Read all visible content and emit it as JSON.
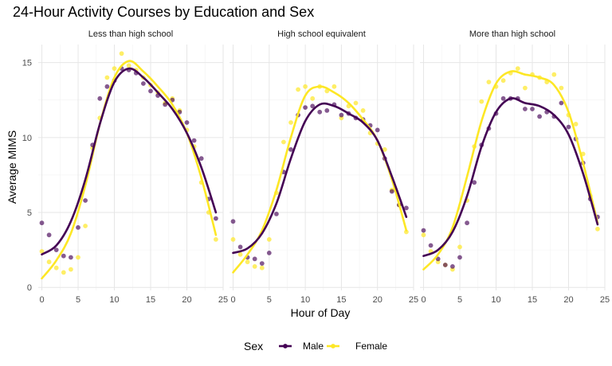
{
  "chart_data": {
    "type": "scatter",
    "title": "24-Hour Activity Courses by Education and Sex",
    "xlabel": "Hour of Day",
    "ylabel": "Average MIMS",
    "xlim": [
      -0.5,
      25
    ],
    "ylim": [
      -0.2,
      16.2
    ],
    "x_ticks": [
      0,
      5,
      10,
      15,
      20,
      25
    ],
    "y_ticks": [
      0,
      5,
      10,
      15
    ],
    "grid": true,
    "legend": {
      "title": "Sex",
      "position": "bottom"
    },
    "colors": {
      "Male": "#440154",
      "Female": "#FDE725"
    },
    "panels": [
      {
        "title": "Less than high school",
        "series": [
          {
            "name": "Male",
            "points": [
              [
                0,
                4.3
              ],
              [
                1,
                3.5
              ],
              [
                2,
                2.5
              ],
              [
                3,
                2.1
              ],
              [
                4,
                2.0
              ],
              [
                5,
                4.0
              ],
              [
                6,
                5.8
              ],
              [
                7,
                9.5
              ],
              [
                8,
                12.6
              ],
              [
                9,
                13.4
              ],
              [
                10,
                13.8
              ],
              [
                11,
                14.6
              ],
              [
                12,
                14.5
              ],
              [
                13,
                14.3
              ],
              [
                14,
                13.6
              ],
              [
                15,
                13.1
              ],
              [
                16,
                12.8
              ],
              [
                17,
                12.2
              ],
              [
                18,
                12.5
              ],
              [
                19,
                11.7
              ],
              [
                20,
                11.0
              ],
              [
                21,
                9.8
              ],
              [
                22,
                8.6
              ],
              [
                23,
                5.9
              ],
              [
                24,
                4.6
              ]
            ],
            "smooth": [
              [
                0,
                2.2
              ],
              [
                2,
                2.8
              ],
              [
                4,
                4.4
              ],
              [
                6,
                7.2
              ],
              [
                8,
                10.9
              ],
              [
                10,
                13.7
              ],
              [
                12,
                14.6
              ],
              [
                14,
                14.0
              ],
              [
                16,
                13.0
              ],
              [
                18,
                11.9
              ],
              [
                20,
                10.3
              ],
              [
                22,
                8.0
              ],
              [
                24,
                5.0
              ]
            ]
          },
          {
            "name": "Female",
            "points": [
              [
                0,
                2.4
              ],
              [
                1,
                1.7
              ],
              [
                2,
                1.3
              ],
              [
                3,
                1.0
              ],
              [
                4,
                1.2
              ],
              [
                5,
                2.0
              ],
              [
                6,
                4.1
              ],
              [
                7,
                9.3
              ],
              [
                8,
                11.3
              ],
              [
                9,
                14.0
              ],
              [
                10,
                14.6
              ],
              [
                11,
                15.6
              ],
              [
                12,
                14.8
              ],
              [
                13,
                14.5
              ],
              [
                14,
                14.0
              ],
              [
                15,
                13.5
              ],
              [
                16,
                13.0
              ],
              [
                17,
                12.3
              ],
              [
                18,
                12.6
              ],
              [
                19,
                11.8
              ],
              [
                20,
                10.5
              ],
              [
                21,
                9.4
              ],
              [
                22,
                7.0
              ],
              [
                23,
                5.0
              ],
              [
                24,
                3.2
              ]
            ],
            "smooth": [
              [
                0,
                0.6
              ],
              [
                2,
                1.8
              ],
              [
                4,
                3.6
              ],
              [
                6,
                6.8
              ],
              [
                8,
                10.9
              ],
              [
                10,
                14.0
              ],
              [
                12,
                15.1
              ],
              [
                14,
                14.4
              ],
              [
                16,
                13.4
              ],
              [
                18,
                12.2
              ],
              [
                20,
                10.3
              ],
              [
                22,
                7.3
              ],
              [
                24,
                3.5
              ]
            ]
          }
        ]
      },
      {
        "title": "High school equivalent",
        "series": [
          {
            "name": "Male",
            "points": [
              [
                0,
                4.4
              ],
              [
                1,
                2.7
              ],
              [
                2,
                2.0
              ],
              [
                3,
                1.9
              ],
              [
                4,
                1.6
              ],
              [
                5,
                2.3
              ],
              [
                6,
                4.9
              ],
              [
                7,
                7.7
              ],
              [
                8,
                9.2
              ],
              [
                9,
                11.5
              ],
              [
                10,
                12.0
              ],
              [
                11,
                12.1
              ],
              [
                12,
                11.7
              ],
              [
                13,
                11.8
              ],
              [
                14,
                12.2
              ],
              [
                15,
                11.5
              ],
              [
                16,
                11.6
              ],
              [
                17,
                11.3
              ],
              [
                18,
                11.2
              ],
              [
                19,
                10.8
              ],
              [
                20,
                10.5
              ],
              [
                21,
                8.6
              ],
              [
                22,
                6.4
              ],
              [
                23,
                5.5
              ],
              [
                24,
                5.3
              ]
            ],
            "smooth": [
              [
                0,
                2.3
              ],
              [
                2,
                2.6
              ],
              [
                4,
                3.6
              ],
              [
                6,
                5.6
              ],
              [
                8,
                8.6
              ],
              [
                10,
                11.1
              ],
              [
                12,
                12.2
              ],
              [
                14,
                12.1
              ],
              [
                16,
                11.6
              ],
              [
                18,
                11.0
              ],
              [
                20,
                9.8
              ],
              [
                22,
                7.4
              ],
              [
                24,
                4.7
              ]
            ]
          },
          {
            "name": "Female",
            "points": [
              [
                0,
                3.2
              ],
              [
                1,
                2.2
              ],
              [
                2,
                1.7
              ],
              [
                3,
                1.4
              ],
              [
                4,
                1.3
              ],
              [
                5,
                3.2
              ],
              [
                6,
                6.3
              ],
              [
                7,
                9.7
              ],
              [
                8,
                11.0
              ],
              [
                9,
                13.2
              ],
              [
                10,
                13.4
              ],
              [
                11,
                12.6
              ],
              [
                12,
                13.4
              ],
              [
                13,
                13.1
              ],
              [
                14,
                13.4
              ],
              [
                15,
                11.3
              ],
              [
                16,
                12.1
              ],
              [
                17,
                12.3
              ],
              [
                18,
                11.8
              ],
              [
                19,
                10.3
              ],
              [
                20,
                9.6
              ],
              [
                21,
                9.2
              ],
              [
                22,
                6.5
              ],
              [
                23,
                5.5
              ],
              [
                24,
                3.7
              ]
            ],
            "smooth": [
              [
                0,
                1.0
              ],
              [
                2,
                2.2
              ],
              [
                4,
                3.8
              ],
              [
                6,
                6.5
              ],
              [
                8,
                10.0
              ],
              [
                10,
                12.8
              ],
              [
                12,
                13.4
              ],
              [
                14,
                13.0
              ],
              [
                16,
                12.3
              ],
              [
                18,
                11.2
              ],
              [
                20,
                9.8
              ],
              [
                22,
                7.2
              ],
              [
                24,
                3.8
              ]
            ]
          }
        ]
      },
      {
        "title": "More than high school",
        "series": [
          {
            "name": "Male",
            "points": [
              [
                0,
                3.8
              ],
              [
                1,
                2.8
              ],
              [
                2,
                1.9
              ],
              [
                3,
                1.5
              ],
              [
                4,
                1.4
              ],
              [
                5,
                2.0
              ],
              [
                6,
                4.3
              ],
              [
                7,
                7.0
              ],
              [
                8,
                9.5
              ],
              [
                9,
                10.6
              ],
              [
                10,
                11.6
              ],
              [
                11,
                12.6
              ],
              [
                12,
                12.6
              ],
              [
                13,
                12.6
              ],
              [
                14,
                11.9
              ],
              [
                15,
                11.9
              ],
              [
                16,
                11.4
              ],
              [
                17,
                11.7
              ],
              [
                18,
                11.4
              ],
              [
                19,
                12.3
              ],
              [
                20,
                10.7
              ],
              [
                21,
                9.9
              ],
              [
                22,
                8.3
              ],
              [
                23,
                5.9
              ],
              [
                24,
                4.7
              ]
            ],
            "smooth": [
              [
                0,
                2.1
              ],
              [
                2,
                2.5
              ],
              [
                4,
                3.7
              ],
              [
                6,
                6.1
              ],
              [
                8,
                9.4
              ],
              [
                10,
                11.7
              ],
              [
                12,
                12.6
              ],
              [
                14,
                12.3
              ],
              [
                16,
                12.1
              ],
              [
                18,
                11.5
              ],
              [
                20,
                10.2
              ],
              [
                22,
                7.6
              ],
              [
                24,
                4.2
              ]
            ]
          },
          {
            "name": "Female",
            "points": [
              [
                0,
                3.5
              ],
              [
                1,
                2.4
              ],
              [
                2,
                1.7
              ],
              [
                3,
                1.5
              ],
              [
                4,
                1.2
              ],
              [
                5,
                2.7
              ],
              [
                6,
                5.8
              ],
              [
                7,
                9.4
              ],
              [
                8,
                12.4
              ],
              [
                9,
                13.7
              ],
              [
                10,
                13.4
              ],
              [
                11,
                13.8
              ],
              [
                12,
                14.3
              ],
              [
                13,
                14.6
              ],
              [
                14,
                13.3
              ],
              [
                15,
                14.2
              ],
              [
                16,
                14.0
              ],
              [
                17,
                13.7
              ],
              [
                18,
                14.2
              ],
              [
                19,
                13.3
              ],
              [
                20,
                11.5
              ],
              [
                21,
                10.9
              ],
              [
                22,
                8.9
              ],
              [
                23,
                6.1
              ],
              [
                24,
                3.9
              ]
            ],
            "smooth": [
              [
                0,
                1.2
              ],
              [
                2,
                2.2
              ],
              [
                4,
                4.0
              ],
              [
                6,
                7.4
              ],
              [
                8,
                11.1
              ],
              [
                10,
                13.6
              ],
              [
                12,
                14.4
              ],
              [
                14,
                14.2
              ],
              [
                16,
                14.0
              ],
              [
                18,
                13.5
              ],
              [
                20,
                11.7
              ],
              [
                22,
                8.3
              ],
              [
                24,
                4.3
              ]
            ]
          }
        ]
      }
    ]
  }
}
